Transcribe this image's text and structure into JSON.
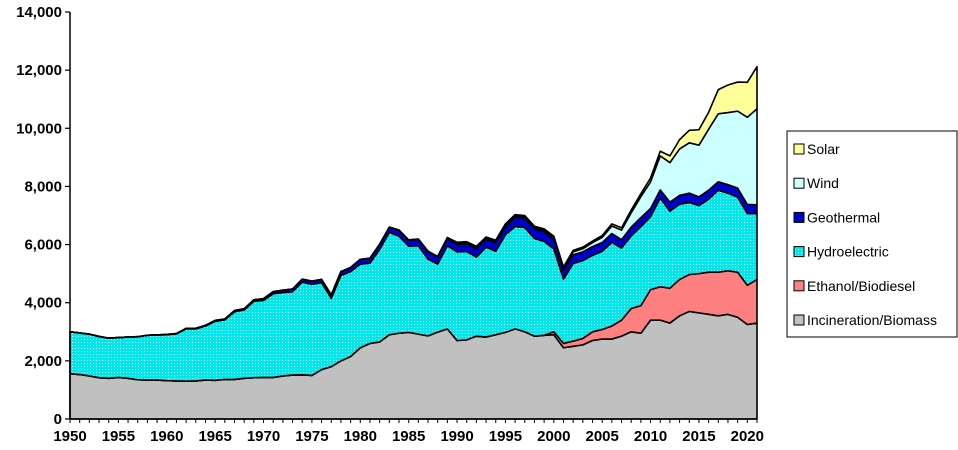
{
  "chart_data": {
    "type": "area",
    "stacked": true,
    "title": "",
    "xlabel": "",
    "ylabel": "",
    "xlim": [
      1950,
      2021
    ],
    "ylim": [
      0,
      14000
    ],
    "y_ticks": [
      0,
      2000,
      4000,
      6000,
      8000,
      10000,
      12000,
      14000
    ],
    "y_tick_labels": [
      "0",
      "2,000",
      "4,000",
      "6,000",
      "8,000",
      "10,000",
      "12,000",
      "14,000"
    ],
    "x_ticks": [
      1950,
      1955,
      1960,
      1965,
      1970,
      1975,
      1980,
      1985,
      1990,
      1995,
      2000,
      2005,
      2010,
      2015,
      2020
    ],
    "x_tick_labels": [
      "1950",
      "1955",
      "1960",
      "1965",
      "1970",
      "1975",
      "1980",
      "1985",
      "1990",
      "1995",
      "2000",
      "2005",
      "2010",
      "2015",
      "2020"
    ],
    "grid": false,
    "legend_position": "right",
    "x": [
      1950,
      1951,
      1952,
      1953,
      1954,
      1955,
      1956,
      1957,
      1958,
      1959,
      1960,
      1961,
      1962,
      1963,
      1964,
      1965,
      1966,
      1967,
      1968,
      1969,
      1970,
      1971,
      1972,
      1973,
      1974,
      1975,
      1976,
      1977,
      1978,
      1979,
      1980,
      1981,
      1982,
      1983,
      1984,
      1985,
      1986,
      1987,
      1988,
      1989,
      1990,
      1991,
      1992,
      1993,
      1994,
      1995,
      1996,
      1997,
      1998,
      1999,
      2000,
      2001,
      2002,
      2003,
      2004,
      2005,
      2006,
      2007,
      2008,
      2009,
      2010,
      2011,
      2012,
      2013,
      2014,
      2015,
      2016,
      2017,
      2018,
      2019,
      2020,
      2021
    ],
    "series": [
      {
        "name": "Incineration/Biomass",
        "color": "#c0c0c0",
        "values": [
          1560,
          1530,
          1480,
          1420,
          1400,
          1430,
          1400,
          1350,
          1340,
          1340,
          1320,
          1310,
          1300,
          1310,
          1340,
          1330,
          1360,
          1360,
          1400,
          1420,
          1430,
          1430,
          1480,
          1510,
          1520,
          1500,
          1700,
          1800,
          2000,
          2150,
          2450,
          2600,
          2650,
          2900,
          2950,
          2980,
          2920,
          2860,
          2990,
          3100,
          2700,
          2720,
          2850,
          2820,
          2900,
          2980,
          3100,
          3000,
          2850,
          2880,
          2900,
          2450,
          2500,
          2550,
          2700,
          2750,
          2750,
          2850,
          3000,
          2950,
          3400,
          3400,
          3300,
          3550,
          3700,
          3650,
          3600,
          3550,
          3600,
          3500,
          3250,
          3300
        ]
      },
      {
        "name": "Ethanol/Biodiesel",
        "color": "#ff8080",
        "values": [
          0,
          0,
          0,
          0,
          0,
          0,
          0,
          0,
          0,
          0,
          0,
          0,
          0,
          0,
          0,
          0,
          0,
          0,
          0,
          0,
          0,
          0,
          0,
          0,
          0,
          0,
          0,
          0,
          0,
          0,
          0,
          0,
          0,
          0,
          0,
          0,
          0,
          0,
          0,
          0,
          0,
          0,
          0,
          0,
          0,
          0,
          0,
          0,
          0,
          0,
          100,
          150,
          180,
          220,
          300,
          330,
          450,
          550,
          800,
          950,
          1050,
          1150,
          1200,
          1250,
          1270,
          1350,
          1450,
          1500,
          1500,
          1550,
          1350,
          1500
        ]
      },
      {
        "name": "Hydroelectric",
        "color": "#ccffff",
        "hatch_color": "#00e8ec",
        "values": [
          1440,
          1430,
          1440,
          1420,
          1380,
          1370,
          1420,
          1480,
          1540,
          1550,
          1580,
          1620,
          1800,
          1790,
          1860,
          2030,
          2050,
          2330,
          2350,
          2630,
          2650,
          2880,
          2870,
          2870,
          3190,
          3130,
          2990,
          2350,
          2940,
          2920,
          2880,
          2760,
          3180,
          3520,
          3340,
          2970,
          3040,
          2640,
          2340,
          2860,
          3050,
          3040,
          2720,
          3090,
          2870,
          3360,
          3520,
          3590,
          3360,
          3230,
          2850,
          2210,
          2670,
          2680,
          2630,
          2690,
          2880,
          2480,
          2500,
          2720,
          2510,
          3050,
          2650,
          2590,
          2480,
          2340,
          2510,
          2820,
          2670,
          2580,
          2470,
          2270
        ]
      },
      {
        "name": "Geothermal",
        "color": "#0000cc",
        "values": [
          0,
          0,
          0,
          0,
          0,
          0,
          0,
          0,
          0,
          0,
          10,
          10,
          20,
          20,
          20,
          30,
          30,
          40,
          40,
          50,
          60,
          70,
          80,
          90,
          100,
          110,
          110,
          120,
          130,
          140,
          160,
          170,
          180,
          180,
          200,
          200,
          220,
          250,
          240,
          250,
          250,
          260,
          290,
          270,
          290,
          280,
          320,
          320,
          330,
          330,
          330,
          300,
          300,
          300,
          300,
          300,
          300,
          290,
          300,
          310,
          280,
          280,
          310,
          300,
          320,
          300,
          310,
          290,
          290,
          310,
          310,
          300
        ]
      },
      {
        "name": "Wind",
        "color": "#ccffff",
        "values": [
          0,
          0,
          0,
          0,
          0,
          0,
          0,
          0,
          0,
          0,
          0,
          0,
          0,
          0,
          0,
          0,
          0,
          0,
          0,
          0,
          0,
          0,
          0,
          0,
          0,
          0,
          0,
          0,
          0,
          0,
          0,
          0,
          0,
          0,
          10,
          10,
          10,
          20,
          20,
          30,
          30,
          30,
          30,
          30,
          40,
          40,
          40,
          40,
          40,
          50,
          60,
          70,
          100,
          110,
          140,
          180,
          260,
          330,
          500,
          720,
          920,
          1170,
          1360,
          1600,
          1730,
          1780,
          2100,
          2340,
          2480,
          2650,
          3000,
          3300
        ]
      },
      {
        "name": "Solar",
        "color": "#ffff99",
        "values": [
          0,
          0,
          0,
          0,
          0,
          0,
          0,
          0,
          0,
          0,
          0,
          0,
          0,
          0,
          0,
          0,
          0,
          0,
          0,
          0,
          0,
          0,
          0,
          0,
          0,
          0,
          0,
          0,
          0,
          0,
          0,
          0,
          0,
          0,
          0,
          0,
          0,
          0,
          0,
          0,
          50,
          50,
          50,
          50,
          50,
          50,
          50,
          50,
          50,
          50,
          50,
          50,
          50,
          50,
          50,
          60,
          70,
          80,
          90,
          100,
          130,
          160,
          230,
          320,
          430,
          530,
          580,
          830,
          950,
          1000,
          1200,
          1450
        ]
      }
    ],
    "legend_order": [
      "Solar",
      "Wind",
      "Geothermal",
      "Hydroelectric",
      "Ethanol/Biodiesel",
      "Incineration/Biomass"
    ]
  }
}
